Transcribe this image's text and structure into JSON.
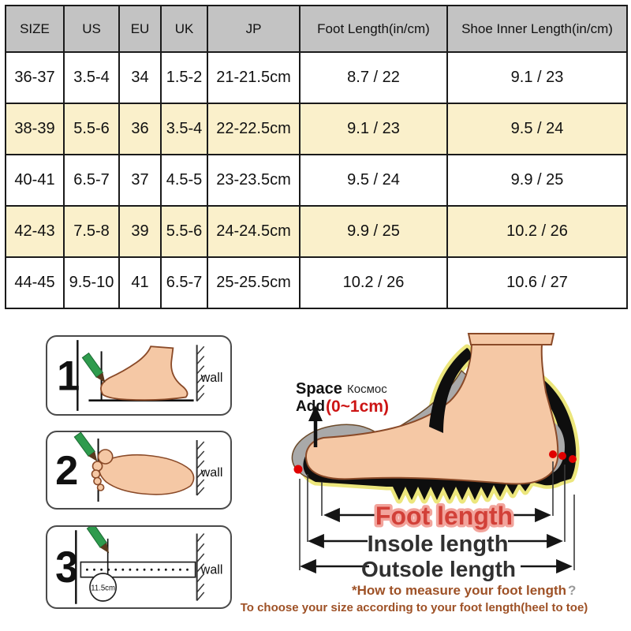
{
  "chart_data": {
    "type": "table",
    "columns": [
      "SIZE",
      "US",
      "EU",
      "UK",
      "JP",
      "Foot Length(in/cm)",
      "Shoe Inner Length(in/cm)"
    ],
    "rows": [
      [
        "36-37",
        "3.5-4",
        "34",
        "1.5-2",
        "21-21.5cm",
        "8.7 / 22",
        "9.1 / 23"
      ],
      [
        "38-39",
        "5.5-6",
        "36",
        "3.5-4",
        "22-22.5cm",
        "9.1 / 23",
        "9.5 / 24"
      ],
      [
        "40-41",
        "6.5-7",
        "37",
        "4.5-5",
        "23-23.5cm",
        "9.5 / 24",
        "9.9 / 25"
      ],
      [
        "42-43",
        "7.5-8",
        "39",
        "5.5-6",
        "24-24.5cm",
        "9.9 / 25",
        "10.2 / 26"
      ],
      [
        "44-45",
        "9.5-10",
        "41",
        "6.5-7",
        "25-25.5cm",
        "10.2 / 26",
        "10.6 / 27"
      ]
    ],
    "highlighted_rows": [
      1,
      3
    ]
  },
  "colors": {
    "header_bg": "#c3c3c3",
    "row_highlight": "#faf0cb",
    "row_default": "#ffffff",
    "table_border": "#1a1a1a",
    "accent_red": "#cc1414",
    "foot_length_red": "#d24038",
    "foot_length_halo": "#f2a49c",
    "note_brown": "#9e5126",
    "glow_yellow": "#ece67c",
    "skin": "#f5c8a5",
    "insole_gray": "#a9a9a9",
    "pencil_green": "#2e9b4d"
  },
  "steps": [
    {
      "number": "1",
      "wall_label": "wall"
    },
    {
      "number": "2",
      "wall_label": "wall"
    },
    {
      "number": "3",
      "wall_label": "wall",
      "ruler_label": "11.5cm"
    }
  ],
  "measure_diagram": {
    "space_label": "Space",
    "space_label_ru": "Космос",
    "add_label": "Add",
    "add_value": "(0~1cm)",
    "foot_length_label": "Foot length",
    "insole_length_label": "Insole length",
    "outsole_length_label": "Outsole length",
    "how_to_line": "*How to measure your foot length",
    "how_to_qmark": "?",
    "choose_line": "To choose your size according to your foot length(heel to toe)"
  }
}
